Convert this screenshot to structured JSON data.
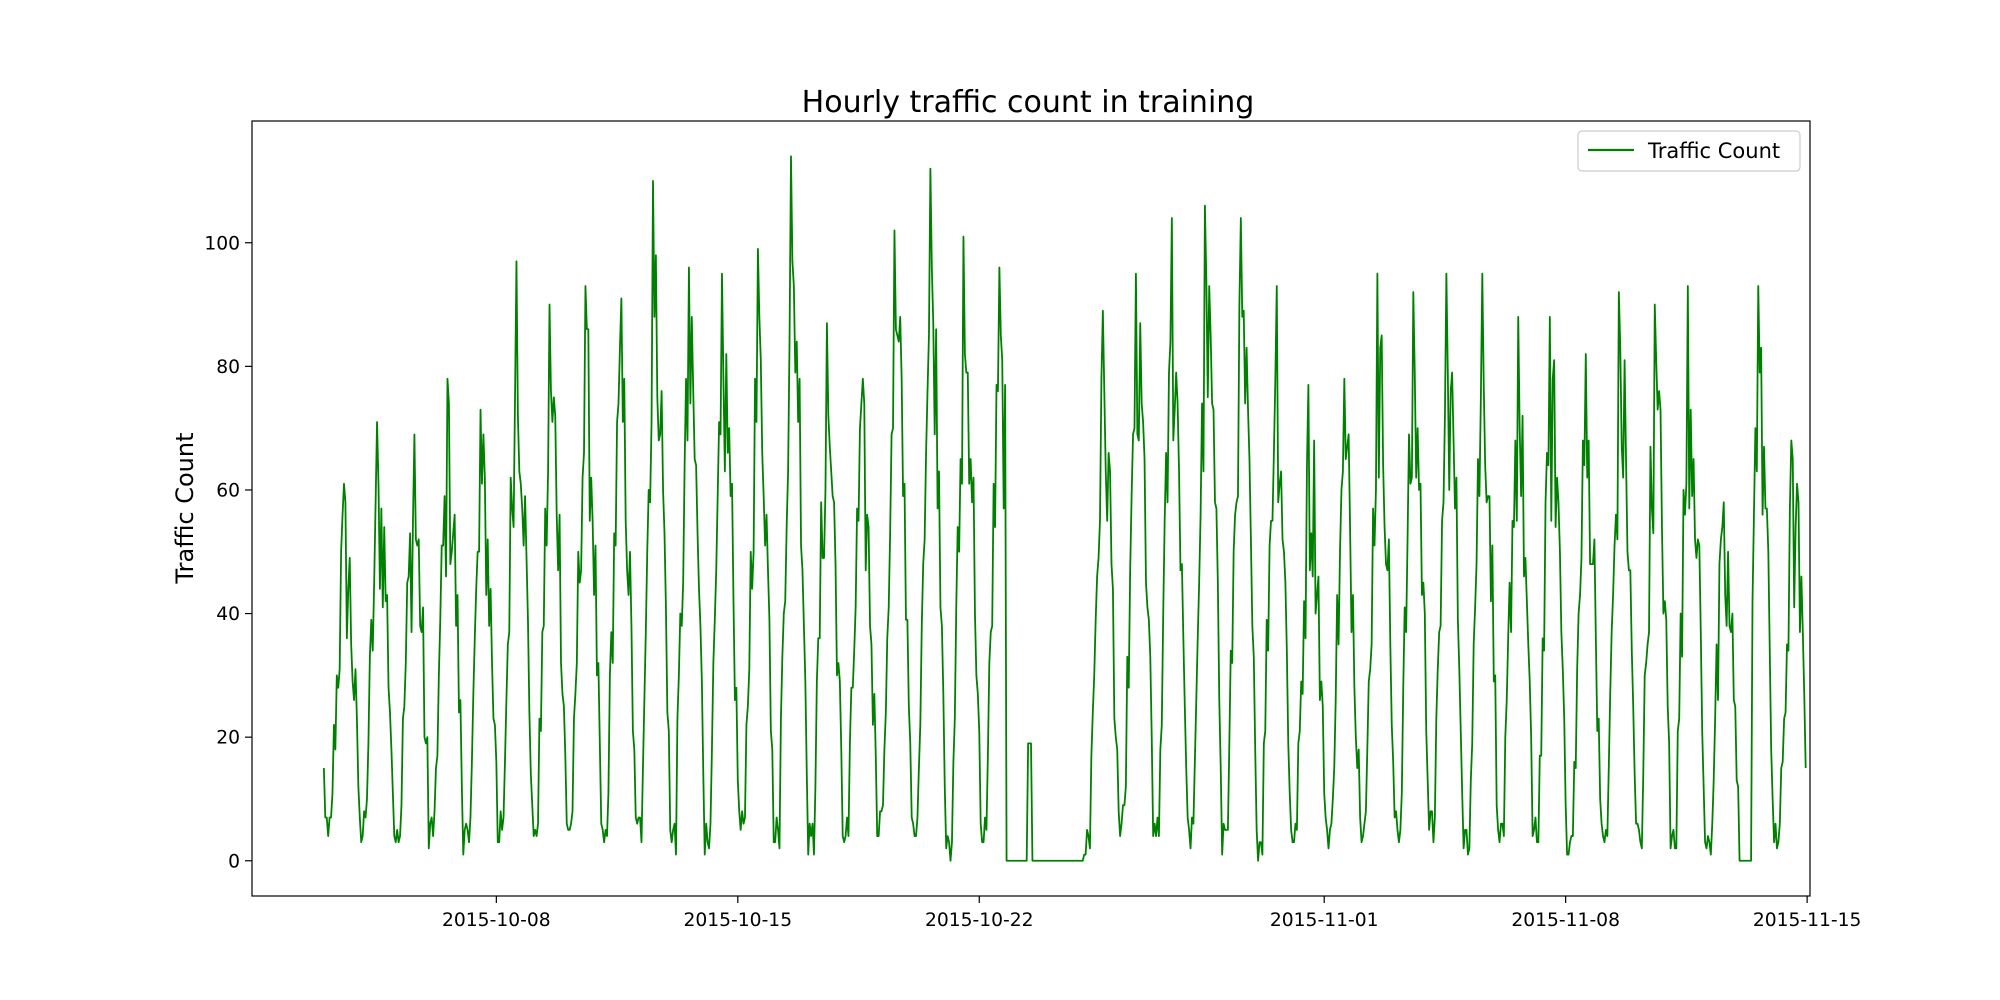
{
  "chart_data": {
    "type": "line",
    "title": "Hourly traffic count in training",
    "xlabel": "",
    "ylabel": "Traffic Count",
    "ylim": [
      -5.7,
      119.7
    ],
    "xlim": [
      "2015-09-30T22:00",
      "2015-11-15T02:00"
    ],
    "grid": false,
    "legend_position": "top-right",
    "colors": {
      "line": "#008000",
      "axes": "#000000",
      "background": "#ffffff"
    },
    "y_ticks": [
      0,
      20,
      40,
      60,
      80,
      100
    ],
    "x_ticks": [
      "2015-10-08",
      "2015-10-15",
      "2015-10-22",
      "2015-11-01",
      "2015-11-08",
      "2015-11-15"
    ],
    "series": [
      {
        "name": "Traffic Count",
        "resolution": "hourly",
        "start": "2015-10-03T00:00",
        "end": "2015-11-14T23:00",
        "daily_minimum": [
          3,
          2,
          1,
          2,
          1,
          2,
          3,
          2,
          1,
          2,
          1,
          1,
          2,
          2,
          1,
          2,
          3,
          1,
          0,
          2,
          0,
          0,
          0,
          3,
          1,
          1,
          1,
          0,
          1,
          2,
          3,
          2,
          2,
          1,
          0,
          1,
          0,
          1,
          1,
          1,
          0,
          1,
          0
        ],
        "daily_maximum": [
          61,
          71,
          69,
          78,
          73,
          97,
          90,
          93,
          91,
          110,
          96,
          95,
          99,
          114,
          87,
          78,
          102,
          112,
          101,
          96,
          19,
          0,
          89,
          95,
          104,
          106,
          104,
          93,
          77,
          78,
          95,
          92,
          95,
          95,
          88,
          88,
          82,
          92,
          90,
          93,
          58,
          93,
          68
        ],
        "daily_peak_timestamp": [
          "2015-10-03T14:00",
          "2015-10-04T13:00",
          "2015-10-05T15:00",
          "2015-10-06T14:00",
          "2015-10-07T13:00",
          "2015-10-08T14:00",
          "2015-10-09T13:00",
          "2015-10-10T14:00",
          "2015-10-11T15:00",
          "2015-10-12T13:00",
          "2015-10-13T14:00",
          "2015-10-14T13:00",
          "2015-10-15T14:00",
          "2015-10-16T13:00",
          "2015-10-17T14:00",
          "2015-10-18T15:00",
          "2015-10-19T13:00",
          "2015-10-20T14:00",
          "2015-10-21T13:00",
          "2015-10-22T14:00",
          "2015-10-23T11:00",
          "2015-10-24T12:00",
          "2015-10-25T14:00",
          "2015-10-26T13:00",
          "2015-10-27T14:00",
          "2015-10-28T13:00",
          "2015-10-29T14:00",
          "2015-10-30T15:00",
          "2015-10-31T13:00",
          "2015-11-01T14:00",
          "2015-11-02T13:00",
          "2015-11-03T14:00",
          "2015-11-04T13:00",
          "2015-11-05T14:00",
          "2015-11-06T15:00",
          "2015-11-07T13:00",
          "2015-11-08T14:00",
          "2015-11-09T13:00",
          "2015-11-10T14:00",
          "2015-11-11T13:00",
          "2015-11-12T14:00",
          "2015-11-13T14:00",
          "2015-11-14T13:00"
        ],
        "zero_periods": [
          [
            "2015-10-22T19:00",
            "2015-10-23T09:00"
          ],
          [
            "2015-10-23T13:00",
            "2015-10-25T00:00"
          ],
          [
            "2015-11-13T01:00",
            "2015-11-13T09:00"
          ]
        ]
      }
    ]
  }
}
